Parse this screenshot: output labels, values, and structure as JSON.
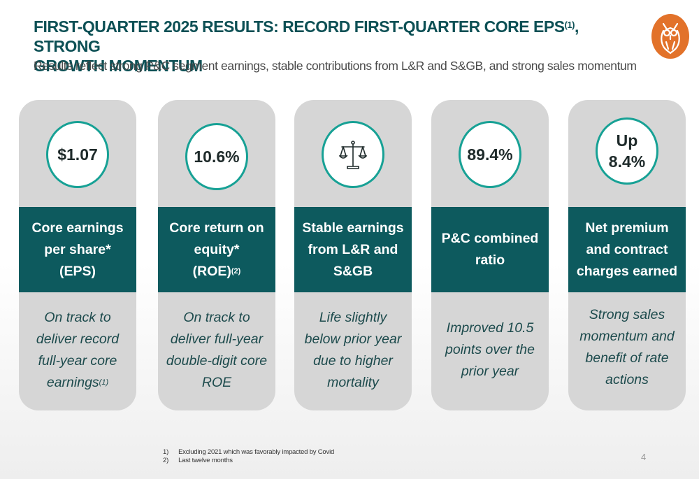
{
  "header": {
    "title_line1": "FIRST-QUARTER 2025 RESULTS: RECORD FIRST-QUARTER CORE EPS",
    "title_sup": "(1)",
    "title_line1_end": ", STRONG",
    "title_line2": "GROWTH MOMENTUM",
    "subtitle": "Results reflect strong P&C segment earnings, stable contributions from L&R and S&GB, and strong sales momentum"
  },
  "logo": {
    "icon": "owl-logo-icon",
    "color": "#e2722a"
  },
  "cards": [
    {
      "metric": "$1.07",
      "band": [
        "Core earnings",
        "per share*",
        "(EPS)"
      ],
      "desc": [
        "On track to",
        "deliver record",
        "full-year core",
        "earnings"
      ],
      "desc_sup": "(1)"
    },
    {
      "metric": "10.6%",
      "band": [
        "Core return on",
        "equity*",
        "(ROE)"
      ],
      "band_sup": "(2)",
      "desc": [
        "On track to",
        "deliver full-year",
        "double-digit core",
        "ROE"
      ]
    },
    {
      "icon": "scales-icon",
      "band": [
        "Stable earnings",
        "from L&R and",
        "S&GB"
      ],
      "desc": [
        "Life slightly",
        "below prior year",
        "due to higher",
        "mortality"
      ]
    },
    {
      "metric": "89.4%",
      "band": [
        "P&C combined",
        "ratio"
      ],
      "desc": [
        "Improved 10.5",
        "points over the",
        "prior year"
      ]
    },
    {
      "metric_line1": "Up",
      "metric_line2": "8.4%",
      "band": [
        "Net premium",
        "and contract",
        "charges earned"
      ],
      "desc": [
        "Strong sales",
        "momentum and",
        "benefit of rate",
        "actions"
      ]
    }
  ],
  "footnotes": [
    {
      "num": "1)",
      "text": "Excluding 2021 which was favorably impacted by Covid"
    },
    {
      "num": "2)",
      "text": "Last twelve months"
    }
  ],
  "page_number": "4",
  "colors": {
    "accent_teal": "#0d5a5e",
    "circle_border": "#17a195",
    "card_bg": "#d6d6d6"
  }
}
